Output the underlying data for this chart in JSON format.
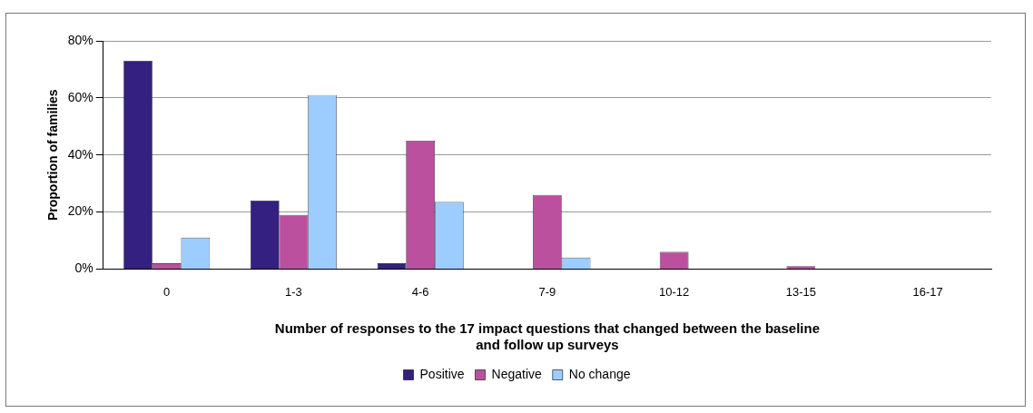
{
  "chart_data": {
    "type": "bar",
    "xlabel": "Number of responses to the 17 impact questions that changed between the baseline and follow up surveys",
    "ylabel": "Proportion of families",
    "categories": [
      "0",
      "1-3",
      "4-6",
      "7-9",
      "10-12",
      "13-15",
      "16-17"
    ],
    "series": [
      {
        "name": "Positive",
        "color": "#332080",
        "values": [
          73,
          24,
          2,
          0,
          0,
          0,
          0
        ]
      },
      {
        "name": "Negative",
        "color": "#bb509f",
        "values": [
          2,
          19,
          45,
          26,
          6,
          1,
          0
        ]
      },
      {
        "name": "No change",
        "color": "#9dcdff",
        "values": [
          11,
          61,
          23.5,
          4,
          0,
          0,
          0
        ]
      }
    ],
    "ylim": [
      0,
      80
    ],
    "yticks": [
      {
        "value": 0,
        "label": "0%"
      },
      {
        "value": 20,
        "label": "20%"
      },
      {
        "value": 40,
        "label": "40%"
      },
      {
        "value": 60,
        "label": "60%"
      },
      {
        "value": 80,
        "label": "80%"
      }
    ],
    "grid": "y",
    "legend": "bottom"
  }
}
